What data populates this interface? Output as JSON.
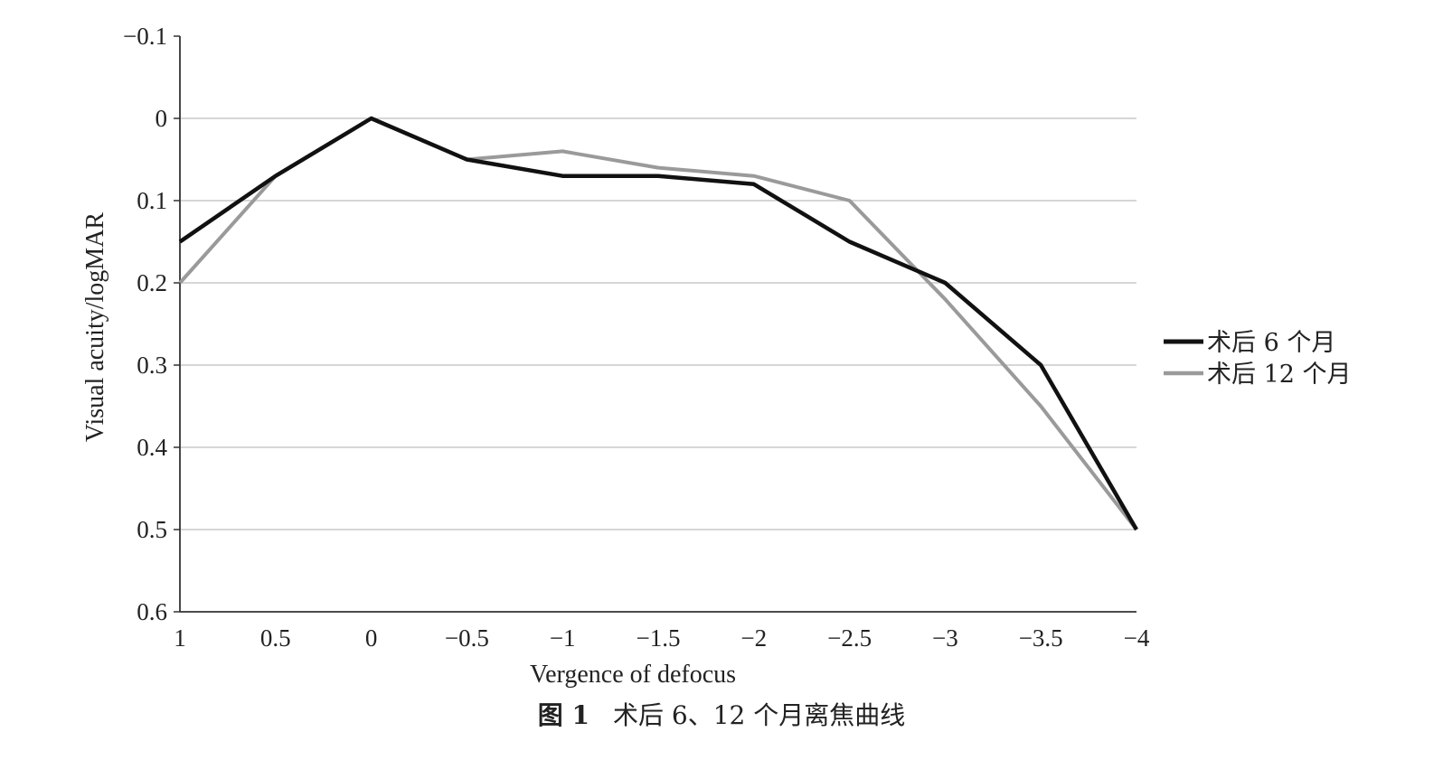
{
  "chart_data": {
    "type": "line",
    "x": [
      1,
      0.5,
      0,
      -0.5,
      -1,
      -1.5,
      -2,
      -2.5,
      -3,
      -3.5,
      -4
    ],
    "x_tick_labels": [
      "1",
      "0.5",
      "0",
      "−0.5",
      "−1",
      "−1.5",
      "−2",
      "−2.5",
      "−3",
      "−3.5",
      "−4"
    ],
    "xlabel": "Vergence of defocus",
    "ylabel": "Visual acuity/logMAR",
    "ylim": [
      -0.1,
      0.6
    ],
    "y_inverted": true,
    "y_ticks": [
      -0.1,
      0,
      0.1,
      0.2,
      0.3,
      0.4,
      0.5,
      0.6
    ],
    "y_tick_labels": [
      "−0.1",
      "0",
      "0.1",
      "0.2",
      "0.3",
      "0.4",
      "0.5",
      "0.6"
    ],
    "grid": true,
    "legend_position": "right",
    "series": [
      {
        "name": "术后 6 个月",
        "color": "#111111",
        "values": [
          0.15,
          0.07,
          0.0,
          0.05,
          0.07,
          0.07,
          0.08,
          0.15,
          0.2,
          0.3,
          0.5
        ]
      },
      {
        "name": "术后 12 个月",
        "color": "#9a9a9a",
        "values": [
          0.2,
          0.07,
          0.0,
          0.05,
          0.04,
          0.06,
          0.07,
          0.1,
          0.22,
          0.35,
          0.5
        ]
      }
    ]
  },
  "caption": {
    "figure_number": "图 1",
    "text": "术后 6、12 个月离焦曲线"
  }
}
